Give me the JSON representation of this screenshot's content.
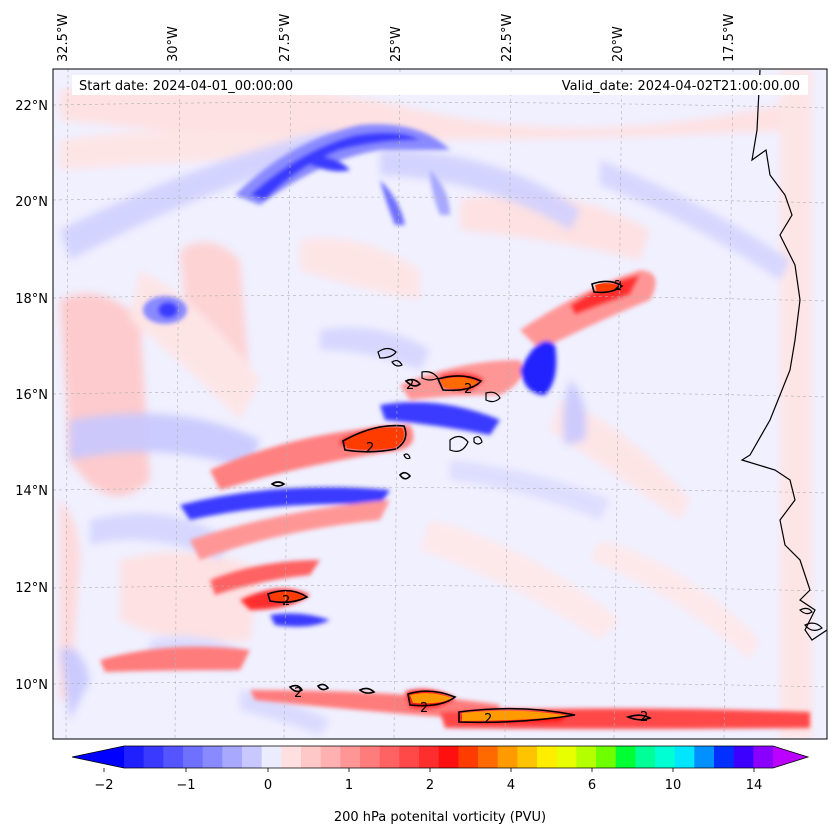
{
  "header": {
    "start_date": "Start date: 2024-04-01_00:00:00",
    "valid_date": "Valid_date: 2024-04-02T21:00:00.00"
  },
  "longitude_labels": [
    "32.5°W",
    "30°W",
    "27.5°W",
    "25°W",
    "22.5°W",
    "20°W",
    "17.5°W"
  ],
  "latitude_labels": [
    "22°N",
    "20°N",
    "18°N",
    "16°N",
    "14°N",
    "12°N",
    "10°N"
  ],
  "contour_level_label": "2",
  "colorbar": {
    "label": "200 hPa potenital vorticity (PVU)",
    "tick_labels": [
      "−2",
      "−1",
      "0",
      "1",
      "2",
      "4",
      "6",
      "10",
      "14"
    ],
    "colors": [
      "#2020ff",
      "#3a3aff",
      "#5555ff",
      "#7070ff",
      "#8a8aff",
      "#a8a8ff",
      "#c8c8ff",
      "#ececff",
      "#ffe0e0",
      "#ffc8c8",
      "#ffb0b0",
      "#ff9696",
      "#ff7c7c",
      "#ff6262",
      "#ff4848",
      "#ff2e2e",
      "#ff1010",
      "#ff3c00",
      "#ff6a00",
      "#ff9a00",
      "#ffc400",
      "#ffee00",
      "#e8ff00",
      "#b4ff00",
      "#6eff00",
      "#00ff32",
      "#00ff96",
      "#00ffd2",
      "#00e6ff",
      "#0090ff",
      "#0030ff",
      "#3c00ff",
      "#8a00ff"
    ],
    "under_color": "#0000ff",
    "over_color": "#bb00ff"
  },
  "colors": {
    "background_field": "#f0f0ff",
    "coastline": "#000000",
    "gridline": "#b0b0b0"
  }
}
